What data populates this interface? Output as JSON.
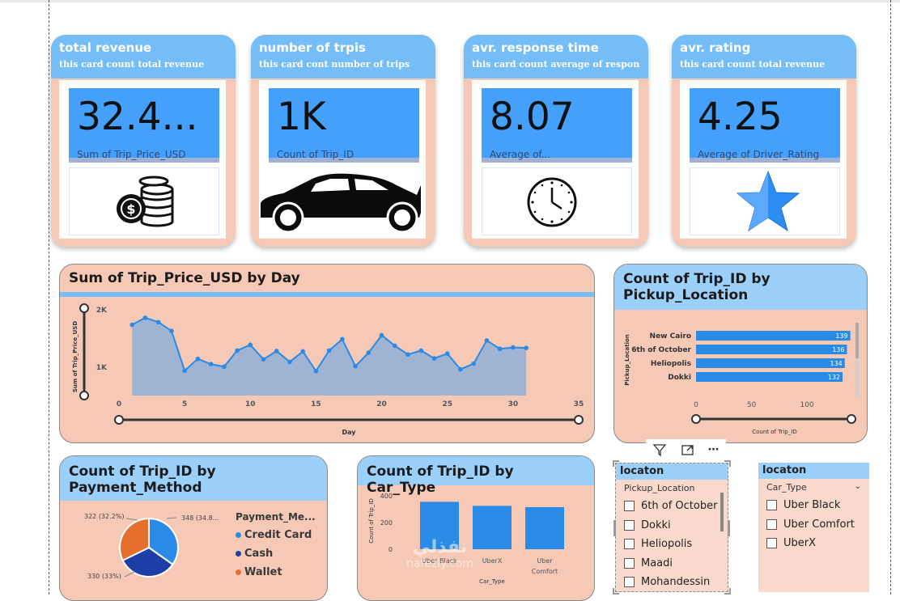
{
  "cards": [
    {
      "title": "total revenue",
      "subtitle": "this card count total revenue",
      "value": "32.4...",
      "label": "Sum of Trip_Price_USD",
      "icon": "coins-icon"
    },
    {
      "title": "number of trpis",
      "subtitle": "this card cont number of trips",
      "value": "1K",
      "label": "Count of Trip_ID",
      "icon": "car-icon"
    },
    {
      "title": "avr. response time",
      "subtitle": "this card count average of response ...",
      "value": "8.07",
      "label": "Average of...",
      "icon": "clock-icon"
    },
    {
      "title": "avr. rating",
      "subtitle": "this card count total revenue",
      "value": "4.25",
      "label": "Average of Driver_Rating",
      "icon": "star-icon"
    }
  ],
  "colors": {
    "accent": "#44a0fb",
    "header": "#74bdf6",
    "panel": "#f5c9b6",
    "line": "#2a8be6",
    "cash": "#1f3fa8",
    "wallet": "#e76f2e"
  },
  "line_chart": {
    "title": "Sum of Trip_Price_USD by Day",
    "ylabel": "Sum of Trip_Price_USD",
    "xlabel": "Day",
    "yticks": [
      "2K",
      "1K"
    ],
    "xticks": [
      "0",
      "5",
      "10",
      "15",
      "20",
      "25",
      "30",
      "35"
    ]
  },
  "location_chart": {
    "title_line1": "Count of Trip_ID by",
    "title_line2": "Pickup_Location",
    "ylabel": "Pickup_Location",
    "xlabel": "Count of Trip_ID",
    "xticks": [
      "0",
      "50",
      "100"
    ]
  },
  "payment_chart": {
    "title_line1": "Count of Trip_ID by",
    "title_line2": "Payment_Method",
    "legend_title": "Payment_Me...",
    "labels": [
      "348 (34.8...",
      "330 (33%)",
      "322 (32.2%)"
    ]
  },
  "car_chart": {
    "title": "Count of Trip_ID by Car_Type",
    "ylabel": "Count of Trip_ID",
    "xlabel": "Car_Type",
    "yticks": [
      "400",
      "200",
      "0"
    ],
    "cat_labels": [
      "Uber Black",
      "UberX",
      "Uber",
      "Comfort"
    ]
  },
  "chart_data": [
    {
      "type": "area",
      "title": "Sum of Trip_Price_USD by Day",
      "xlabel": "Day",
      "ylabel": "Sum of Trip_Price_USD",
      "x": [
        1,
        2,
        3,
        4,
        5,
        6,
        7,
        8,
        9,
        10,
        11,
        12,
        13,
        14,
        15,
        16,
        17,
        18,
        19,
        20,
        21,
        22,
        23,
        24,
        25,
        26,
        27,
        28,
        29,
        30,
        31
      ],
      "values": [
        1620,
        1780,
        1680,
        1480,
        570,
        840,
        720,
        660,
        1030,
        1160,
        830,
        1020,
        770,
        1010,
        560,
        1030,
        1290,
        670,
        980,
        1380,
        1140,
        940,
        1030,
        850,
        960,
        600,
        730,
        1260,
        1070,
        1100,
        1090
      ],
      "xlim": [
        0,
        35
      ],
      "ylim": [
        0,
        2000
      ]
    },
    {
      "type": "bar",
      "title": "Count of Trip_ID by Pickup_Location",
      "xlabel": "Count of Trip_ID",
      "ylabel": "Pickup_Location",
      "categories": [
        "New Cairo",
        "6th of October",
        "Heliopolis",
        "Dokki"
      ],
      "values": [
        139,
        136,
        134,
        132
      ],
      "xlim": [
        0,
        140
      ]
    },
    {
      "type": "pie",
      "title": "Count of Trip_ID by Payment_Method",
      "categories": [
        "Credit Card",
        "Cash",
        "Wallet"
      ],
      "values": [
        348,
        330,
        322
      ]
    },
    {
      "type": "bar",
      "title": "Count of Trip_ID by Car_Type",
      "xlabel": "Car_Type",
      "ylabel": "Count of Trip_ID",
      "categories": [
        "Uber Black",
        "UberX",
        "Uber Comfort"
      ],
      "values": [
        355,
        325,
        315
      ],
      "ylim": [
        0,
        400
      ]
    }
  ],
  "slicer1": {
    "title": "locaton",
    "field": "Pickup_Location",
    "items": [
      "6th of October",
      "Dokki",
      "Heliopolis",
      "Maadi",
      "Mohandessin"
    ]
  },
  "slicer2": {
    "title": "locaton",
    "field": "Car_Type",
    "items": [
      "Uber Black",
      "Uber Comfort",
      "UberX"
    ]
  },
  "watermark": {
    "line1": "نفذلي",
    "line2": "nafezly.com"
  }
}
